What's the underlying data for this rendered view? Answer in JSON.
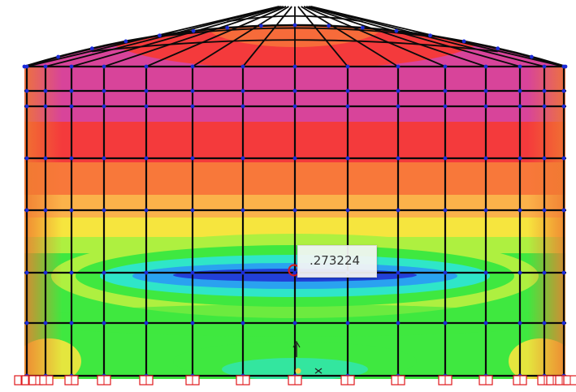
{
  "probe": {
    "value": ".273224"
  },
  "contour_colors": [
    "#d8449a",
    "#f43a3c",
    "#f8783a",
    "#fbb24a",
    "#f6e53e",
    "#aef040",
    "#3fe840",
    "#2fe6c8",
    "#2aa2f0",
    "#2240d8"
  ],
  "theme": {
    "frame": "#0a0a0a",
    "node": "#1c2bd8",
    "support": "#e0181c",
    "marker": "#e0181c"
  },
  "icons": [
    "support-icon",
    "probe-marker-icon",
    "axis-icon"
  ]
}
